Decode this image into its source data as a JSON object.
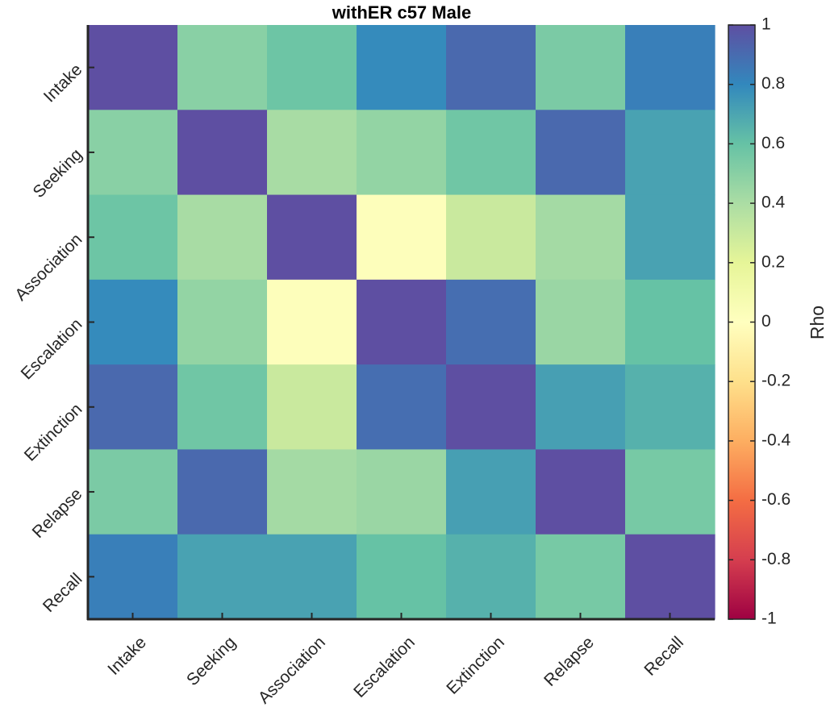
{
  "chart_data": {
    "type": "heatmap",
    "title": "withER c57 Male",
    "row_labels": [
      "Intake",
      "Seeking",
      "Association",
      "Escalation",
      "Extinction",
      "Relapse",
      "Recall"
    ],
    "col_labels": [
      "Intake",
      "Seeking",
      "Association",
      "Escalation",
      "Extinction",
      "Relapse",
      "Recall"
    ],
    "values": [
      [
        1.0,
        0.5,
        0.58,
        0.79,
        0.91,
        0.54,
        0.83
      ],
      [
        0.5,
        1.0,
        0.41,
        0.47,
        0.57,
        0.91,
        0.71
      ],
      [
        0.58,
        0.41,
        1.0,
        0.02,
        0.3,
        0.42,
        0.71
      ],
      [
        0.79,
        0.47,
        0.02,
        1.0,
        0.89,
        0.45,
        0.6
      ],
      [
        0.91,
        0.57,
        0.3,
        0.89,
        1.0,
        0.72,
        0.66
      ],
      [
        0.54,
        0.91,
        0.42,
        0.45,
        0.72,
        1.0,
        0.55
      ],
      [
        0.83,
        0.71,
        0.71,
        0.6,
        0.66,
        0.55,
        1.0
      ]
    ],
    "colorbar": {
      "label": "Rho",
      "range": [
        -1,
        1
      ],
      "ticks": [
        "1",
        "0.8",
        "0.6",
        "0.4",
        "0.2",
        "0",
        "-0.2",
        "-0.4",
        "-0.6",
        "-0.8",
        "-1"
      ],
      "colormap": "spectral",
      "colors": [
        "#9e0142",
        "#d53e4f",
        "#f46d43",
        "#fdae61",
        "#fee08b",
        "#ffffbf",
        "#e6f598",
        "#abdda4",
        "#66c2a5",
        "#3288bd",
        "#5e4fa2"
      ]
    }
  }
}
